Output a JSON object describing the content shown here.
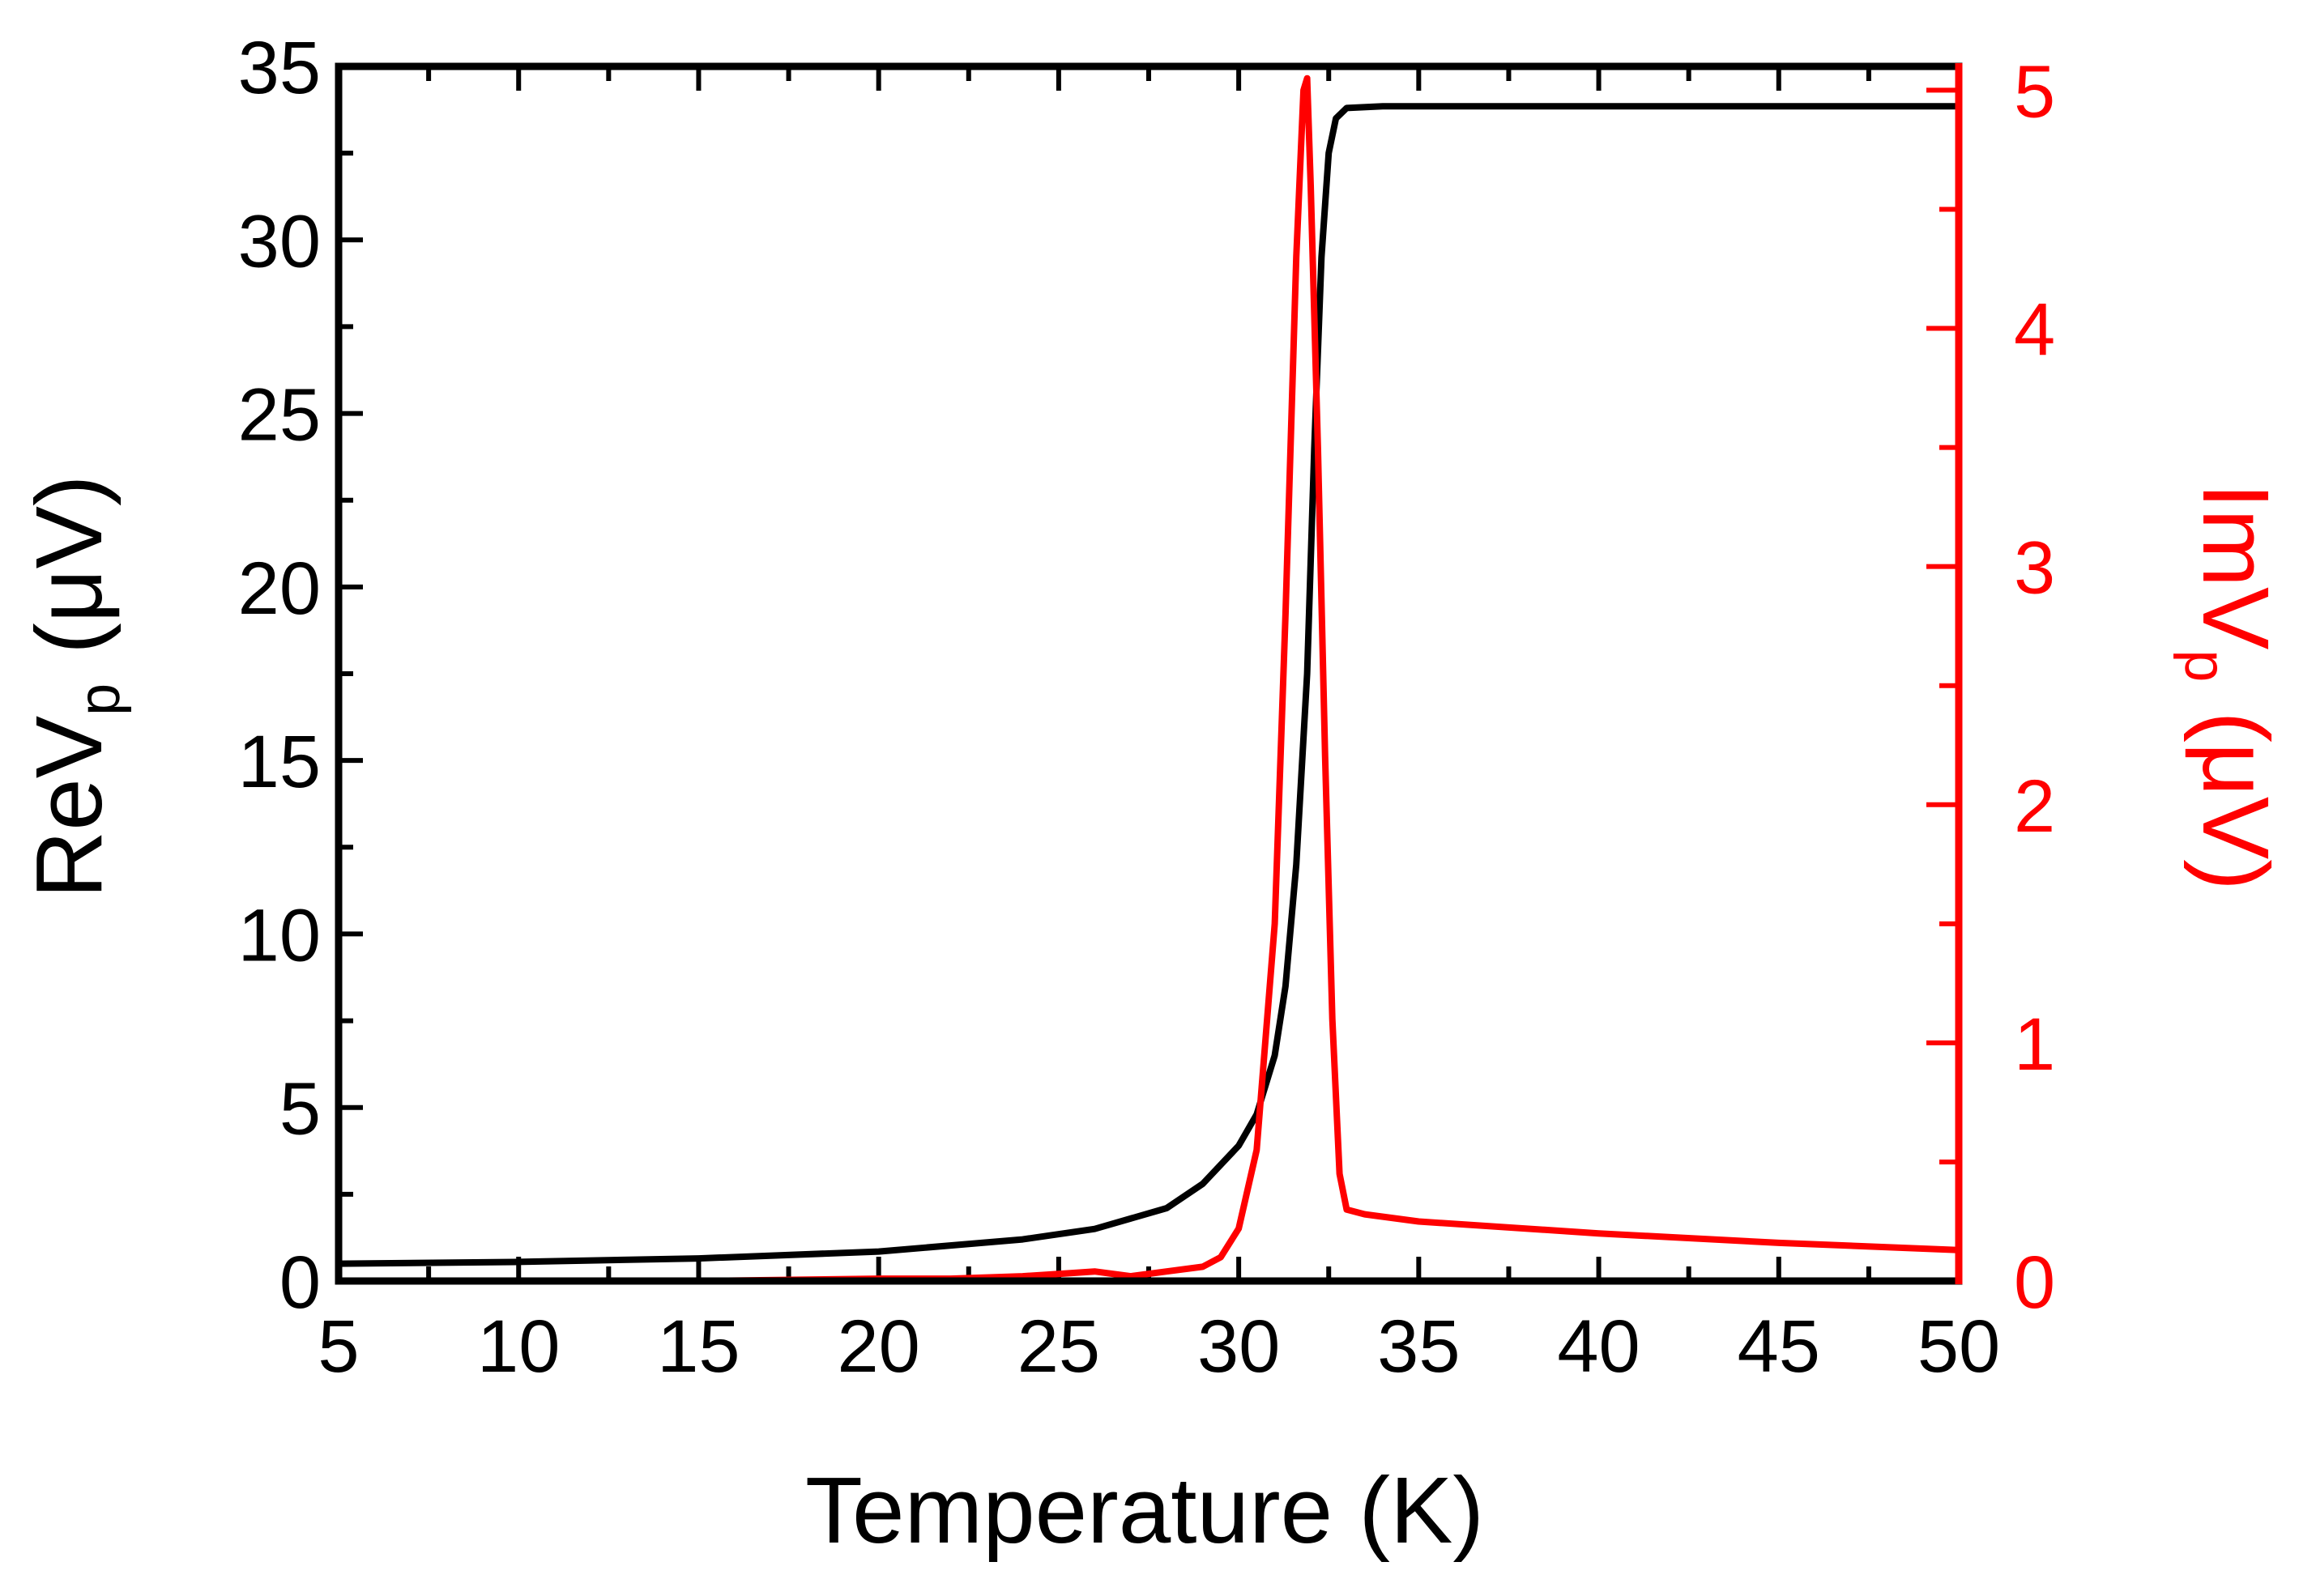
{
  "chart_data": {
    "type": "line",
    "xlabel": "Temperature (K)",
    "ylabel_left": {
      "prefix": "ReV",
      "subscript": "p",
      "unit": "(μV)"
    },
    "ylabel_right": {
      "prefix": "ImV",
      "subscript": "p",
      "unit": "(μV)"
    },
    "xlim": [
      5,
      50
    ],
    "ylim_left": [
      0,
      35
    ],
    "ylim_right": [
      0,
      5.1
    ],
    "x_ticks": [
      5,
      10,
      15,
      20,
      25,
      30,
      35,
      40,
      45,
      50
    ],
    "y_left_ticks": [
      0,
      5,
      10,
      15,
      20,
      25,
      30,
      35
    ],
    "y_right_ticks": [
      0,
      1,
      2,
      3,
      4,
      5
    ],
    "colors": {
      "left": "#000000",
      "right": "#ff0000"
    },
    "series": [
      {
        "name": "ReVp",
        "axis": "left",
        "color": "#000000",
        "x": [
          5,
          10,
          15,
          20,
          24,
          26,
          28,
          29,
          30,
          30.5,
          31,
          31.3,
          31.6,
          31.9,
          32.1,
          32.3,
          32.5,
          32.7,
          33,
          34,
          40,
          45,
          50
        ],
        "y": [
          0.5,
          0.55,
          0.65,
          0.85,
          1.2,
          1.5,
          2.1,
          2.8,
          3.9,
          4.8,
          6.5,
          8.5,
          12,
          17.5,
          24,
          29.5,
          32.5,
          33.5,
          33.8,
          33.85,
          33.85,
          33.85,
          33.85
        ]
      },
      {
        "name": "ImVp",
        "axis": "right",
        "color": "#ff0000",
        "x": [
          5,
          10,
          15,
          20,
          22,
          24,
          25,
          26,
          27,
          28,
          29,
          29.5,
          30,
          30.5,
          31,
          31.3,
          31.6,
          31.8,
          31.9,
          32,
          32.2,
          32.4,
          32.6,
          32.8,
          33,
          33.5,
          35,
          40,
          45,
          50
        ],
        "y": [
          0.0,
          0.0,
          0.0,
          0.01,
          0.01,
          0.02,
          0.03,
          0.04,
          0.02,
          0.04,
          0.06,
          0.1,
          0.22,
          0.55,
          1.5,
          2.8,
          4.3,
          5.0,
          5.05,
          4.6,
          3.5,
          2.2,
          1.1,
          0.45,
          0.3,
          0.28,
          0.25,
          0.2,
          0.16,
          0.13
        ]
      }
    ]
  }
}
